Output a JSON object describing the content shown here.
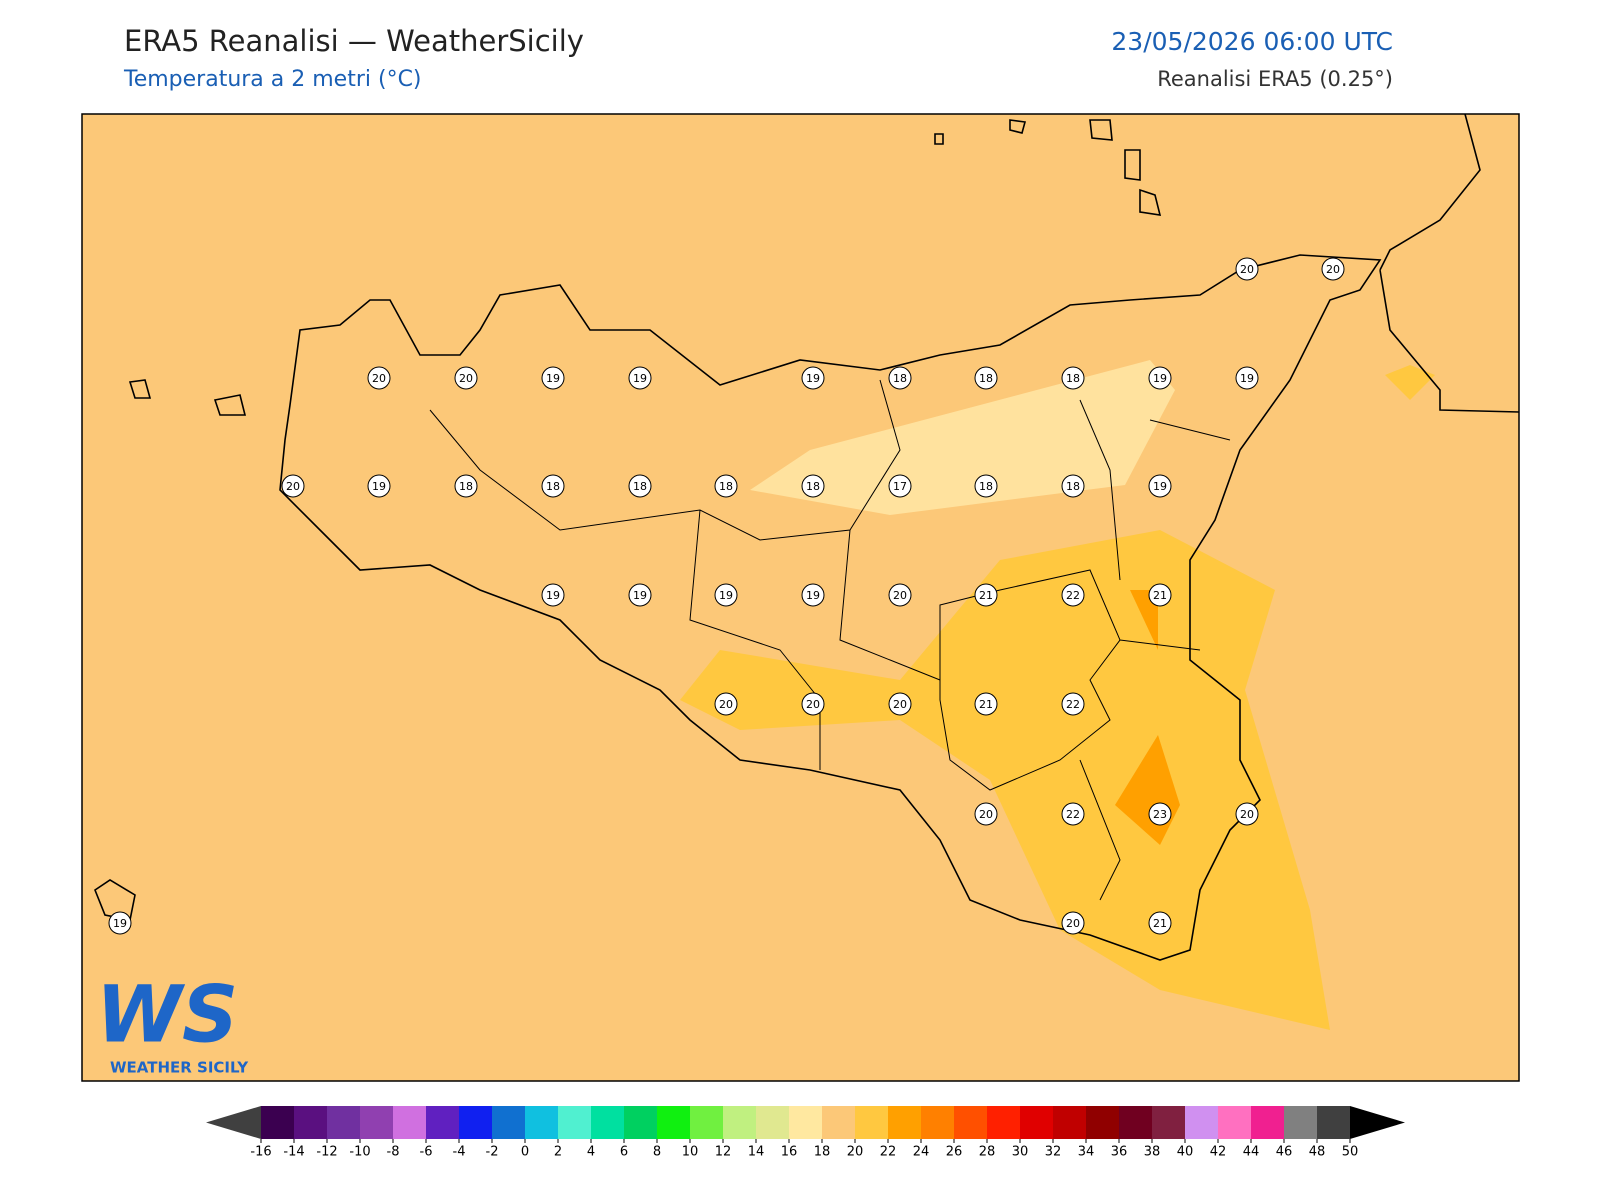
{
  "header": {
    "title": "ERA5 Reanalisi — WeatherSicily",
    "subtitle": "Temperatura a 2 metri (°C)",
    "date": "23/05/2026 06:00 UTC",
    "source": "Reanalisi ERA5 (0.25°)"
  },
  "map": {
    "background": "#fcc878",
    "points": [
      20,
      20,
      20,
      20,
      19,
      19,
      19,
      18,
      18,
      18,
      19,
      19,
      20,
      19,
      18,
      18,
      18,
      18,
      18,
      17,
      18,
      18,
      19,
      19,
      19,
      19,
      19,
      20,
      21,
      22,
      21,
      20,
      20,
      20,
      21,
      22,
      20,
      22,
      23,
      20,
      19,
      20,
      21
    ]
  },
  "logo": {
    "mark": "WS",
    "text": "WEATHER SICILY"
  },
  "colorbar": {
    "ticks": [
      -16,
      -14,
      -12,
      -10,
      -8,
      -6,
      -4,
      -2,
      0,
      2,
      4,
      6,
      8,
      10,
      12,
      14,
      16,
      18,
      20,
      22,
      24,
      26,
      28,
      30,
      32,
      34,
      36,
      38,
      40,
      42,
      44,
      46,
      48,
      50
    ],
    "colors": [
      "#3b0050",
      "#5a1080",
      "#7030a0",
      "#9040b0",
      "#d070e0",
      "#6020c0",
      "#1020f0",
      "#1070d0",
      "#10c0e0",
      "#50f0d0",
      "#00e0a0",
      "#00d060",
      "#10f010",
      "#70f040",
      "#c0f080",
      "#e0e890",
      "#ffe8a0",
      "#fcc878",
      "#ffc840",
      "#ffa000",
      "#ff8000",
      "#ff5000",
      "#ff2000",
      "#e00000",
      "#c00000",
      "#900000",
      "#700020",
      "#802040",
      "#d090f0",
      "#ff70c0",
      "#f02090",
      "#808080",
      "#404040"
    ],
    "under": "#404040",
    "over": "#000000"
  }
}
